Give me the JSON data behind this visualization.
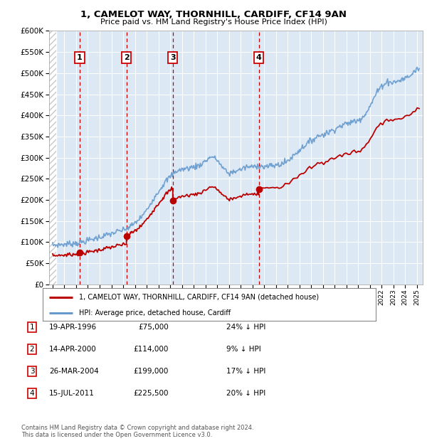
{
  "title": "1, CAMELOT WAY, THORNHILL, CARDIFF, CF14 9AN",
  "subtitle": "Price paid vs. HM Land Registry's House Price Index (HPI)",
  "ylim": [
    0,
    600000
  ],
  "yticks": [
    0,
    50000,
    100000,
    150000,
    200000,
    250000,
    300000,
    350000,
    400000,
    450000,
    500000,
    550000,
    600000
  ],
  "xlim_start": 1993.7,
  "xlim_end": 2025.5,
  "plot_bg_color": "#dce9f5",
  "sales": [
    {
      "date": 1996.3,
      "price": 75000,
      "label": "1"
    },
    {
      "date": 2000.28,
      "price": 114000,
      "label": "2"
    },
    {
      "date": 2004.23,
      "price": 199000,
      "label": "3"
    },
    {
      "date": 2011.54,
      "price": 225500,
      "label": "4"
    }
  ],
  "sale_dates_str": [
    "19-APR-1996",
    "14-APR-2000",
    "26-MAR-2004",
    "15-JUL-2011"
  ],
  "sale_prices_str": [
    "£75,000",
    "£114,000",
    "£199,000",
    "£225,500"
  ],
  "sale_pct_str": [
    "24% ↓ HPI",
    "9% ↓ HPI",
    "17% ↓ HPI",
    "20% ↓ HPI"
  ],
  "red_line_color": "#bb0000",
  "blue_line_color": "#6699cc",
  "marker_color": "#bb0000",
  "vline_color": "#cc0000",
  "footnote": "Contains HM Land Registry data © Crown copyright and database right 2024.\nThis data is licensed under the Open Government Licence v3.0.",
  "legend_label_red": "1, CAMELOT WAY, THORNHILL, CARDIFF, CF14 9AN (detached house)",
  "legend_label_blue": "HPI: Average price, detached house, Cardiff",
  "hpi_keypoints": {
    "1994.0": 93000,
    "1994.5": 94000,
    "1995.0": 95000,
    "1995.5": 96500,
    "1996.0": 98000,
    "1996.5": 100000,
    "1997.0": 104000,
    "1997.5": 108000,
    "1998.0": 112000,
    "1998.5": 116000,
    "1999.0": 120000,
    "1999.5": 125000,
    "2000.0": 128000,
    "2000.5": 135000,
    "2001.0": 145000,
    "2001.5": 158000,
    "2002.0": 175000,
    "2002.5": 200000,
    "2003.0": 220000,
    "2003.5": 240000,
    "2004.0": 255000,
    "2004.5": 268000,
    "2005.0": 272000,
    "2005.5": 275000,
    "2006.0": 278000,
    "2006.5": 282000,
    "2007.0": 292000,
    "2007.5": 303000,
    "2008.0": 295000,
    "2008.5": 275000,
    "2009.0": 262000,
    "2009.5": 268000,
    "2010.0": 272000,
    "2010.5": 278000,
    "2011.0": 278000,
    "2011.5": 282000,
    "2012.0": 278000,
    "2012.5": 280000,
    "2013.0": 282000,
    "2013.5": 285000,
    "2014.0": 292000,
    "2014.5": 305000,
    "2015.0": 318000,
    "2015.5": 330000,
    "2016.0": 340000,
    "2016.5": 350000,
    "2017.0": 355000,
    "2017.5": 360000,
    "2018.0": 368000,
    "2018.5": 375000,
    "2019.0": 380000,
    "2019.5": 385000,
    "2020.0": 388000,
    "2020.5": 400000,
    "2021.0": 420000,
    "2021.5": 450000,
    "2022.0": 470000,
    "2022.5": 480000,
    "2023.0": 478000,
    "2023.5": 482000,
    "2024.0": 488000,
    "2024.5": 495000,
    "2025.0": 510000
  }
}
